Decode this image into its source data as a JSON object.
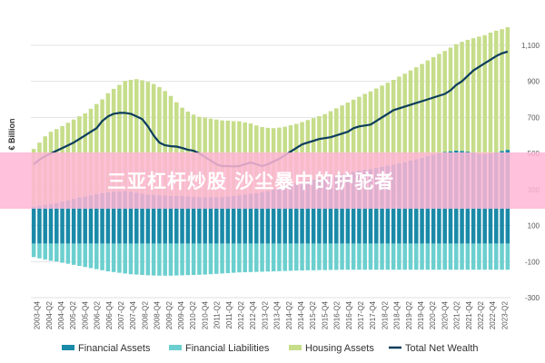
{
  "banner": {
    "text": "三亚杠杆炒股 沙尘暴中的护驼者"
  },
  "chart_data": {
    "type": "bar",
    "ylabel": "€ Billion",
    "ylim": [
      -300,
      1200
    ],
    "yticks": [
      -300,
      -100,
      100,
      300,
      500,
      700,
      900,
      1100
    ],
    "ytick_labels": [
      "-300",
      "-100",
      "100",
      "300",
      "500",
      "700",
      "900",
      "1,100"
    ],
    "xtick_labels": [
      "2003-Q4",
      "2004-Q2",
      "2004-Q4",
      "2005-Q2",
      "2005-Q4",
      "2006-Q2",
      "2006-Q4",
      "2007-Q2",
      "2007-Q4",
      "2008-Q2",
      "2008-Q4",
      "2009-Q2",
      "2009-Q4",
      "2010-Q2",
      "2010-Q4",
      "2011-Q2",
      "2011-Q4",
      "2012-Q2",
      "2012-Q4",
      "2013-Q2",
      "2013-Q4",
      "2014-Q2",
      "2014-Q4",
      "2015-Q2",
      "2015-Q4",
      "2016-Q2",
      "2016-Q4",
      "2017-Q2",
      "2017-Q4",
      "2018-Q2",
      "2018-Q4",
      "2019-Q2",
      "2019-Q4",
      "2020-Q2",
      "2020-Q4",
      "2021-Q2",
      "2021-Q4",
      "2022-Q2",
      "2022-Q4",
      "2023-Q2"
    ],
    "legend_position": "bottom",
    "colors": {
      "financial_assets": "#1a8aa8",
      "financial_liabilities": "#6ccfcf",
      "housing_assets": "#c6dd8a",
      "total_net_wealth": "#0c3d5c"
    },
    "series": [
      {
        "name": "Financial Assets",
        "key": "financial_assets",
        "values": [
          205,
          210,
          215,
          220,
          225,
          232,
          240,
          248,
          256,
          262,
          268,
          274,
          280,
          284,
          288,
          290,
          292,
          288,
          282,
          276,
          272,
          270,
          268,
          266,
          264,
          264,
          264,
          262,
          260,
          258,
          258,
          258,
          258,
          258,
          262,
          264,
          268,
          272,
          276,
          280,
          286,
          292,
          300,
          308,
          318,
          326,
          334,
          342,
          350,
          356,
          362,
          368,
          374,
          380,
          386,
          392,
          398,
          404,
          410,
          414,
          420,
          426,
          432,
          438,
          446,
          452,
          460,
          468,
          476,
          486,
          494,
          502,
          508,
          512,
          516,
          514,
          510,
          504,
          498,
          496,
          500,
          506,
          514,
          520
        ]
      },
      {
        "name": "Financial Liabilities",
        "key": "financial_liabilities",
        "values": [
          -75,
          -82,
          -88,
          -95,
          -100,
          -106,
          -112,
          -118,
          -124,
          -130,
          -136,
          -142,
          -148,
          -154,
          -158,
          -162,
          -166,
          -170,
          -172,
          -174,
          -176,
          -177,
          -178,
          -178,
          -178,
          -177,
          -176,
          -175,
          -174,
          -173,
          -172,
          -170,
          -168,
          -166,
          -164,
          -162,
          -160,
          -159,
          -158,
          -157,
          -156,
          -155,
          -154,
          -153,
          -152,
          -151,
          -150,
          -149,
          -148,
          -148,
          -147,
          -147,
          -146,
          -146,
          -145,
          -145,
          -145,
          -145,
          -145,
          -145,
          -145,
          -145,
          -145,
          -145,
          -145,
          -145,
          -145,
          -145,
          -145,
          -145,
          -145,
          -145,
          -145,
          -145,
          -145,
          -145,
          -145,
          -145,
          -145,
          -145,
          -145,
          -145,
          -145,
          -145
        ]
      },
      {
        "name": "Housing Assets",
        "key": "housing_assets",
        "values": [
          320,
          350,
          380,
          400,
          410,
          420,
          430,
          440,
          450,
          460,
          480,
          500,
          520,
          550,
          570,
          590,
          610,
          620,
          630,
          630,
          625,
          615,
          600,
          580,
          555,
          520,
          490,
          470,
          455,
          445,
          440,
          435,
          430,
          425,
          420,
          415,
          410,
          400,
          390,
          375,
          360,
          350,
          340,
          335,
          330,
          330,
          330,
          332,
          335,
          340,
          345,
          350,
          360,
          370,
          380,
          390,
          400,
          410,
          420,
          430,
          440,
          450,
          460,
          470,
          480,
          490,
          500,
          510,
          520,
          530,
          540,
          550,
          560,
          575,
          590,
          605,
          620,
          635,
          650,
          660,
          670,
          675,
          675,
          680
        ]
      },
      {
        "name": "Total Net Wealth",
        "key": "total_net_wealth",
        "type": "line",
        "values": [
          440,
          465,
          485,
          500,
          515,
          530,
          545,
          560,
          580,
          600,
          620,
          640,
          680,
          705,
          720,
          725,
          725,
          720,
          705,
          690,
          650,
          600,
          560,
          545,
          540,
          538,
          530,
          520,
          515,
          500,
          480,
          460,
          440,
          430,
          430,
          428,
          430,
          440,
          450,
          440,
          430,
          440,
          455,
          470,
          490,
          510,
          530,
          550,
          560,
          570,
          580,
          585,
          590,
          600,
          610,
          620,
          640,
          650,
          655,
          660,
          680,
          700,
          720,
          740,
          750,
          760,
          770,
          780,
          790,
          800,
          810,
          820,
          830,
          850,
          880,
          900,
          930,
          960,
          980,
          1000,
          1020,
          1040,
          1055,
          1065
        ]
      }
    ]
  }
}
